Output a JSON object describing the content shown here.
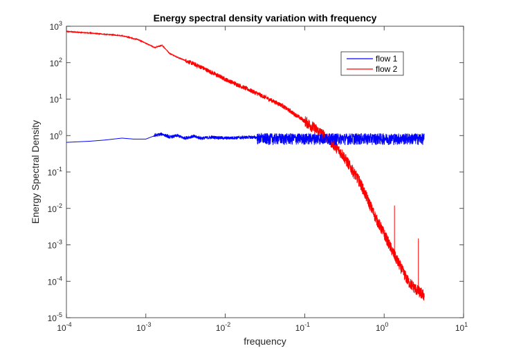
{
  "chart_data": {
    "type": "line",
    "title": "Energy spectral density variation with frequency",
    "xlabel": "frequency",
    "ylabel": "Energy Spectral Density",
    "xscale": "log",
    "yscale": "log",
    "xlim": [
      0.0001,
      10
    ],
    "ylim": [
      1e-05,
      1000
    ],
    "x_ticks": [
      {
        "base": "10",
        "exp": "-4"
      },
      {
        "base": "10",
        "exp": "-3"
      },
      {
        "base": "10",
        "exp": "-2"
      },
      {
        "base": "10",
        "exp": "-1"
      },
      {
        "base": "10",
        "exp": "0"
      },
      {
        "base": "10",
        "exp": "1"
      }
    ],
    "y_ticks": [
      {
        "base": "10",
        "exp": "-5"
      },
      {
        "base": "10",
        "exp": "-4"
      },
      {
        "base": "10",
        "exp": "-3"
      },
      {
        "base": "10",
        "exp": "-2"
      },
      {
        "base": "10",
        "exp": "-1"
      },
      {
        "base": "10",
        "exp": "0"
      },
      {
        "base": "10",
        "exp": "1"
      },
      {
        "base": "10",
        "exp": "2"
      },
      {
        "base": "10",
        "exp": "3"
      }
    ],
    "grid": false,
    "legend_position": "top-right",
    "series": [
      {
        "name": "flow 1",
        "color": "#0000ff",
        "x": [
          0.0001,
          0.0002,
          0.0003,
          0.0005,
          0.0007,
          0.001,
          0.0013,
          0.0016,
          0.002,
          0.0025,
          0.003,
          0.004,
          0.005,
          0.007,
          0.01,
          0.02,
          0.05,
          0.1,
          0.2,
          0.5,
          1,
          2,
          3.2
        ],
        "y": [
          0.65,
          0.7,
          0.75,
          0.85,
          0.8,
          0.8,
          1.0,
          1.1,
          0.9,
          1.0,
          0.85,
          0.95,
          0.85,
          0.9,
          0.85,
          0.9,
          0.85,
          0.88,
          0.85,
          0.85,
          0.85,
          0.85,
          0.85
        ],
        "noise_band": [
          0.55,
          1.15
        ]
      },
      {
        "name": "flow 2",
        "color": "#ff0000",
        "x": [
          0.0001,
          0.0002,
          0.0005,
          0.0008,
          0.001,
          0.0013,
          0.0016,
          0.002,
          0.0025,
          0.003,
          0.005,
          0.01,
          0.02,
          0.05,
          0.1,
          0.2,
          0.3,
          0.5,
          0.8,
          1,
          1.3,
          1.6,
          2,
          2.5,
          3.2
        ],
        "y": [
          720,
          650,
          550,
          430,
          340,
          260,
          300,
          180,
          140,
          120,
          75,
          35,
          18,
          7,
          2.5,
          0.8,
          0.3,
          0.05,
          0.005,
          0.002,
          0.0006,
          0.00025,
          0.0001,
          6e-05,
          4e-05
        ],
        "spikes": [
          {
            "x": 1.35,
            "y": 0.012
          },
          {
            "x": 2.7,
            "y": 0.0015
          }
        ]
      }
    ]
  }
}
